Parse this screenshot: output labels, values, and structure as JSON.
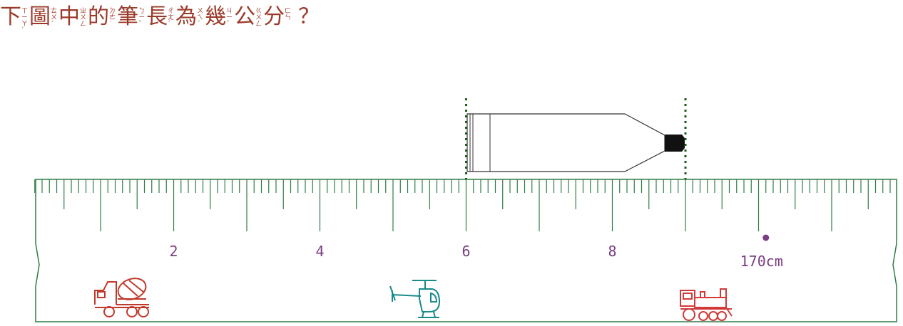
{
  "question": {
    "chars": [
      {
        "char": "下",
        "bopomofo": [
          "ㄒ",
          "ㄧ",
          "ㄚ",
          "ˋ"
        ]
      },
      {
        "char": "圖",
        "bopomofo": [
          "ㄊ",
          "ㄨ",
          "ˊ"
        ]
      },
      {
        "char": "中",
        "bopomofo": [
          "ㄓ",
          "ㄨ",
          "ㄥ"
        ]
      },
      {
        "char": "的",
        "bopomofo": [
          "ㄉ",
          "ㄜ",
          "˙"
        ]
      },
      {
        "char": "筆",
        "bopomofo": [
          "ㄅ",
          "ㄧ",
          "ˇ"
        ]
      },
      {
        "char": "長",
        "bopomofo": [
          "ㄔ",
          "ㄤ",
          "ˊ"
        ]
      },
      {
        "char": "為",
        "bopomofo": [
          "ㄨ",
          "ㄟ",
          "ˊ"
        ]
      },
      {
        "char": "幾",
        "bopomofo": [
          "ㄐ",
          "ㄧ",
          "ˇ"
        ]
      },
      {
        "char": "公",
        "bopomofo": [
          "ㄍ",
          "ㄨ",
          "ㄥ"
        ]
      },
      {
        "char": "分",
        "bopomofo": [
          "ㄈ",
          "ㄣ"
        ]
      }
    ],
    "mark": "？"
  },
  "ruler": {
    "labels": [
      {
        "cm": 2,
        "text": "2"
      },
      {
        "cm": 4,
        "text": "4"
      },
      {
        "cm": 6,
        "text": "6"
      },
      {
        "cm": 8,
        "text": "8"
      }
    ],
    "height_marker": {
      "cm": 10.1,
      "text": "170cm"
    },
    "range_cm": [
      0,
      11.8
    ]
  },
  "pen": {
    "start_cm": 6,
    "end_cm": 9
  },
  "icons": [
    "concrete-mixer-truck-icon",
    "helicopter-icon",
    "steam-train-icon"
  ],
  "colors": {
    "question": "#9b3a2a",
    "ruler": "#2e7d45",
    "label": "#7a3d80",
    "guide": "#1a5c1a",
    "truck": "#c0392b",
    "helicopter": "#1a8a8a",
    "train": "#d23a3a"
  }
}
